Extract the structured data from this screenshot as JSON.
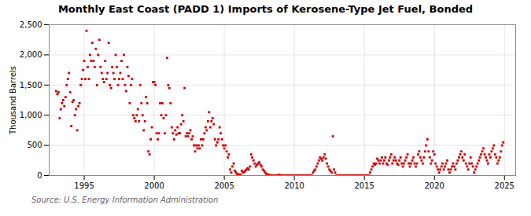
{
  "chart_data": {
    "type": "scatter",
    "title": "Monthly East Coast (PADD 1) Imports of Kerosene-Type Jet Fuel, Bonded",
    "ylabel": "Thousand Barrels",
    "source": "Source: U.S. Energy Information Administration",
    "color": "#cc0000",
    "marker": "square",
    "grid": true,
    "xlim": [
      1992.5,
      2025.8
    ],
    "ylim": [
      0,
      2500
    ],
    "xticks": [
      1995,
      2000,
      2005,
      2010,
      2015,
      2020,
      2025
    ],
    "yticks": [
      0,
      500,
      {
        "value": 1000,
        "label": "1,000"
      },
      {
        "value": 1500,
        "label": "1,500"
      },
      {
        "value": 2000,
        "label": "2,000"
      },
      {
        "value": 2500,
        "label": "2,500"
      }
    ],
    "x": [
      1993.0,
      1993.083,
      1993.167,
      1993.25,
      1993.333,
      1993.417,
      1993.5,
      1993.583,
      1993.667,
      1993.75,
      1993.833,
      1993.917,
      1994.0,
      1994.083,
      1994.167,
      1994.25,
      1994.333,
      1994.417,
      1994.5,
      1994.583,
      1994.667,
      1994.75,
      1994.833,
      1994.917,
      1995.0,
      1995.083,
      1995.167,
      1995.25,
      1995.333,
      1995.417,
      1995.5,
      1995.583,
      1995.667,
      1995.75,
      1995.833,
      1995.917,
      1996.0,
      1996.083,
      1996.167,
      1996.25,
      1996.333,
      1996.417,
      1996.5,
      1996.583,
      1996.667,
      1996.75,
      1996.833,
      1996.917,
      1997.0,
      1997.083,
      1997.167,
      1997.25,
      1997.333,
      1997.417,
      1997.5,
      1997.583,
      1997.667,
      1997.75,
      1997.833,
      1997.917,
      1998.0,
      1998.083,
      1998.167,
      1998.25,
      1998.333,
      1998.417,
      1998.5,
      1998.583,
      1998.667,
      1998.75,
      1998.833,
      1998.917,
      1999.0,
      1999.083,
      1999.167,
      1999.25,
      1999.333,
      1999.417,
      1999.5,
      1999.583,
      1999.667,
      1999.75,
      1999.833,
      1999.917,
      2000.0,
      2000.083,
      2000.167,
      2000.25,
      2000.333,
      2000.417,
      2000.5,
      2000.583,
      2000.667,
      2000.75,
      2000.833,
      2000.917,
      2001.0,
      2001.083,
      2001.167,
      2001.25,
      2001.333,
      2001.417,
      2001.5,
      2001.583,
      2001.667,
      2001.75,
      2001.833,
      2001.917,
      2002.0,
      2002.083,
      2002.167,
      2002.25,
      2002.333,
      2002.417,
      2002.5,
      2002.583,
      2002.667,
      2002.75,
      2002.833,
      2002.917,
      2003.0,
      2003.083,
      2003.167,
      2003.25,
      2003.333,
      2003.417,
      2003.5,
      2003.583,
      2003.667,
      2003.75,
      2003.833,
      2003.917,
      2004.0,
      2004.083,
      2004.167,
      2004.25,
      2004.333,
      2004.417,
      2004.5,
      2004.583,
      2004.667,
      2004.75,
      2004.833,
      2004.917,
      2005.0,
      2005.083,
      2005.167,
      2005.25,
      2005.333,
      2005.417,
      2005.5,
      2005.583,
      2005.667,
      2005.75,
      2005.833,
      2005.917,
      2006.0,
      2006.083,
      2006.167,
      2006.25,
      2006.333,
      2006.417,
      2006.5,
      2006.583,
      2006.667,
      2006.75,
      2006.833,
      2006.917,
      2007.0,
      2007.083,
      2007.167,
      2007.25,
      2007.333,
      2007.417,
      2007.5,
      2007.583,
      2007.667,
      2007.75,
      2007.833,
      2007.917,
      2008.0,
      2008.083,
      2008.167,
      2008.25,
      2008.333,
      2008.417,
      2008.5,
      2008.583,
      2008.667,
      2008.75,
      2008.833,
      2008.917,
      2009.0,
      2009.083,
      2009.167,
      2009.25,
      2009.333,
      2009.417,
      2009.5,
      2009.583,
      2009.667,
      2009.75,
      2009.833,
      2009.917,
      2010.0,
      2010.083,
      2010.167,
      2010.25,
      2010.333,
      2010.417,
      2010.5,
      2010.583,
      2010.667,
      2010.75,
      2010.833,
      2010.917,
      2011.0,
      2011.083,
      2011.167,
      2011.25,
      2011.333,
      2011.417,
      2011.5,
      2011.583,
      2011.667,
      2011.75,
      2011.833,
      2011.917,
      2012.0,
      2012.083,
      2012.167,
      2012.25,
      2012.333,
      2012.417,
      2012.5,
      2012.583,
      2012.667,
      2012.75,
      2012.833,
      2012.917,
      2013.0,
      2013.083,
      2013.167,
      2013.25,
      2013.333,
      2013.417,
      2013.5,
      2013.583,
      2013.667,
      2013.75,
      2013.833,
      2013.917,
      2014.0,
      2014.083,
      2014.167,
      2014.25,
      2014.333,
      2014.417,
      2014.5,
      2014.583,
      2014.667,
      2014.75,
      2014.833,
      2014.917,
      2015.0,
      2015.083,
      2015.167,
      2015.25,
      2015.333,
      2015.417,
      2015.5,
      2015.583,
      2015.667,
      2015.75,
      2015.833,
      2015.917,
      2016.0,
      2016.083,
      2016.167,
      2016.25,
      2016.333,
      2016.417,
      2016.5,
      2016.583,
      2016.667,
      2016.75,
      2016.833,
      2016.917,
      2017.0,
      2017.083,
      2017.167,
      2017.25,
      2017.333,
      2017.417,
      2017.5,
      2017.583,
      2017.667,
      2017.75,
      2017.833,
      2017.917,
      2018.0,
      2018.083,
      2018.167,
      2018.25,
      2018.333,
      2018.417,
      2018.5,
      2018.583,
      2018.667,
      2018.75,
      2018.833,
      2018.917,
      2019.0,
      2019.083,
      2019.167,
      2019.25,
      2019.333,
      2019.417,
      2019.5,
      2019.583,
      2019.667,
      2019.75,
      2019.833,
      2019.917,
      2020.0,
      2020.083,
      2020.167,
      2020.25,
      2020.333,
      2020.417,
      2020.5,
      2020.583,
      2020.667,
      2020.75,
      2020.833,
      2020.917,
      2021.0,
      2021.083,
      2021.167,
      2021.25,
      2021.333,
      2021.417,
      2021.5,
      2021.583,
      2021.667,
      2021.75,
      2021.833,
      2021.917,
      2022.0,
      2022.083,
      2022.167,
      2022.25,
      2022.333,
      2022.417,
      2022.5,
      2022.583,
      2022.667,
      2022.75,
      2022.833,
      2022.917,
      2023.0,
      2023.083,
      2023.167,
      2023.25,
      2023.333,
      2023.417,
      2023.5,
      2023.583,
      2023.667,
      2023.75,
      2023.833,
      2023.917,
      2024.0,
      2024.083,
      2024.167,
      2024.25,
      2024.333,
      2024.417,
      2024.5,
      2024.583,
      2024.667,
      2024.75,
      2024.833,
      2024.917
    ],
    "values": [
      1400,
      1350,
      1380,
      950,
      1100,
      1200,
      1250,
      1150,
      1300,
      1500,
      1600,
      1700,
      1380,
      820,
      1220,
      1250,
      1000,
      1100,
      750,
      1150,
      1200,
      1500,
      1600,
      1750,
      1900,
      1600,
      2400,
      1800,
      1600,
      2000,
      1900,
      2200,
      1900,
      1800,
      2100,
      1500,
      2000,
      2250,
      1800,
      1700,
      1600,
      1550,
      1900,
      1600,
      1700,
      2200,
      1500,
      1450,
      1800,
      1700,
      1600,
      2000,
      1800,
      1500,
      1600,
      1700,
      1900,
      1600,
      2000,
      1500,
      1400,
      1800,
      1650,
      1200,
      1500,
      1600,
      1000,
      950,
      900,
      1000,
      1100,
      900,
      1500,
      1200,
      1000,
      750,
      900,
      1300,
      1200,
      400,
      350,
      600,
      800,
      1550,
      1550,
      1500,
      700,
      600,
      700,
      1200,
      1000,
      1200,
      950,
      700,
      1000,
      1950,
      1500,
      1450,
      1200,
      800,
      700,
      600,
      750,
      680,
      800,
      700,
      700,
      850,
      1000,
      900,
      1450,
      650,
      700,
      650,
      700,
      750,
      600,
      650,
      500,
      400,
      500,
      450,
      500,
      450,
      600,
      500,
      600,
      700,
      800,
      750,
      900,
      1050,
      800,
      900,
      950,
      850,
      600,
      500,
      550,
      600,
      800,
      700,
      600,
      500,
      450,
      500,
      400,
      300,
      350,
      100,
      50,
      150,
      200,
      80,
      50,
      30,
      20,
      10,
      15,
      80,
      50,
      60,
      80,
      100,
      120,
      100,
      150,
      350,
      300,
      250,
      200,
      150,
      180,
      200,
      220,
      180,
      150,
      100,
      80,
      50,
      30,
      20,
      10,
      5,
      5,
      0,
      0,
      0,
      0,
      0,
      5,
      10,
      5,
      0,
      0,
      0,
      0,
      0,
      0,
      0,
      0,
      0,
      0,
      0,
      0,
      0,
      0,
      0,
      0,
      0,
      0,
      0,
      0,
      0,
      0,
      0,
      0,
      0,
      0,
      0,
      50,
      80,
      100,
      150,
      200,
      250,
      300,
      280,
      250,
      300,
      350,
      280,
      200,
      150,
      100,
      80,
      50,
      650,
      100,
      50,
      0,
      0,
      0,
      0,
      0,
      0,
      0,
      0,
      0,
      0,
      0,
      0,
      0,
      0,
      0,
      0,
      0,
      0,
      0,
      0,
      0,
      0,
      0,
      0,
      0,
      0,
      0,
      0,
      0,
      50,
      100,
      150,
      200,
      180,
      200,
      280,
      250,
      200,
      250,
      300,
      200,
      250,
      300,
      200,
      180,
      250,
      300,
      350,
      200,
      250,
      300,
      250,
      200,
      180,
      250,
      300,
      200,
      150,
      200,
      250,
      300,
      350,
      200,
      150,
      200,
      250,
      300,
      200,
      150,
      200,
      350,
      400,
      300,
      250,
      200,
      300,
      400,
      500,
      600,
      400,
      300,
      200,
      250,
      400,
      350,
      200,
      150,
      100,
      50,
      100,
      150,
      200,
      100,
      150,
      200,
      250,
      100,
      50,
      100,
      150,
      200,
      150,
      100,
      200,
      250,
      300,
      350,
      400,
      300,
      250,
      350,
      200,
      150,
      100,
      200,
      300,
      200,
      150,
      50,
      100,
      150,
      200,
      250,
      300,
      350,
      400,
      450,
      350,
      300,
      250,
      200,
      350,
      300,
      400,
      450,
      500,
      350,
      300,
      200,
      250,
      300,
      400,
      500,
      550
    ]
  }
}
